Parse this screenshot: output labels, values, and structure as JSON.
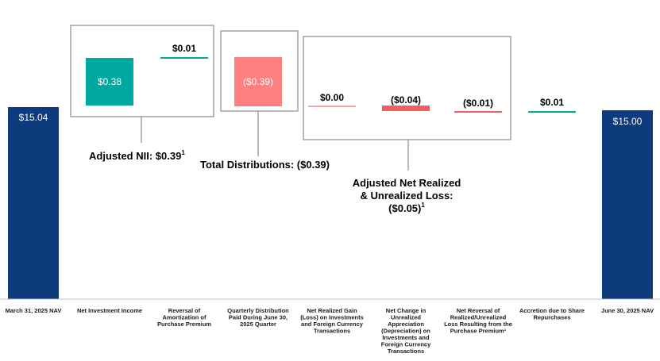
{
  "chart_data": {
    "type": "bar",
    "subtype": "waterfall",
    "categories": [
      "March 31, 2025 NAV",
      "Net Investment Income",
      "Reversal of Amortization of Purchase Premium",
      "Quarterly Distribution Paid During June 30, 2025 Quarter",
      "Net Realized Gain (Loss) on Investments and Foreign Currency Transactions",
      "Net Change in Unrealized Appreciation (Depreciation) on Investments and Foreign Currency Transactions",
      "Net Reversal of Realized/Unrealized Loss Resulting from the Purchase Premium¹",
      "Accretion due to Share Repurchases",
      "June 30, 2025 NAV"
    ],
    "category_lines": [
      [
        "March 31, 2025 NAV"
      ],
      [
        "Net Investment Income"
      ],
      [
        "Reversal of",
        "Amortization of",
        "Purchase Premium"
      ],
      [
        "Quarterly Distribution",
        "Paid During June 30,",
        "2025 Quarter"
      ],
      [
        "Net Realized Gain",
        "(Loss) on Investments",
        "and Foreign Currency",
        "Transactions"
      ],
      [
        "Net Change in",
        "Unrealized",
        "Appreciation",
        "(Depreciation) on",
        "Investments and",
        "Foreign Currency",
        "Transactions"
      ],
      [
        "Net Reversal of",
        "Realized/Unrealized",
        "Loss Resulting from the",
        "Purchase Premium¹"
      ],
      [
        "Accretion due to Share",
        "Repurchases"
      ],
      [
        "June 30, 2025 NAV"
      ]
    ],
    "values": [
      15.04,
      0.38,
      0.01,
      -0.39,
      0.0,
      -0.04,
      -0.01,
      0.01,
      15.0
    ],
    "value_labels": [
      "$15.04",
      "$0.38",
      "$0.01",
      "($0.39)",
      "$0.00",
      "($0.04)",
      "($0.01)",
      "$0.01",
      "$15.00"
    ],
    "kinds": [
      "total",
      "delta",
      "delta",
      "delta",
      "delta",
      "delta",
      "delta",
      "delta",
      "total"
    ],
    "colors": {
      "total": "#0d3b7c",
      "positive_large": "#00a9a0",
      "negative_large": "#ff7f7f",
      "positive_small": "#00a9a0",
      "negative_small": "#f06060"
    },
    "groups": [
      {
        "label": "Adjusted NII: $0.39",
        "sup": "1",
        "members": [
          1,
          2
        ]
      },
      {
        "label": "Total Distributions: ($0.39)",
        "sup": "",
        "members": [
          3
        ]
      },
      {
        "label_lines": [
          "Adjusted Net Realized",
          "& Unrealized Loss:",
          "($0.05)"
        ],
        "sup": "1",
        "members": [
          4,
          5,
          6
        ]
      }
    ],
    "title": "",
    "xlabel": "",
    "ylabel": "",
    "grid": false,
    "legend": "none"
  }
}
